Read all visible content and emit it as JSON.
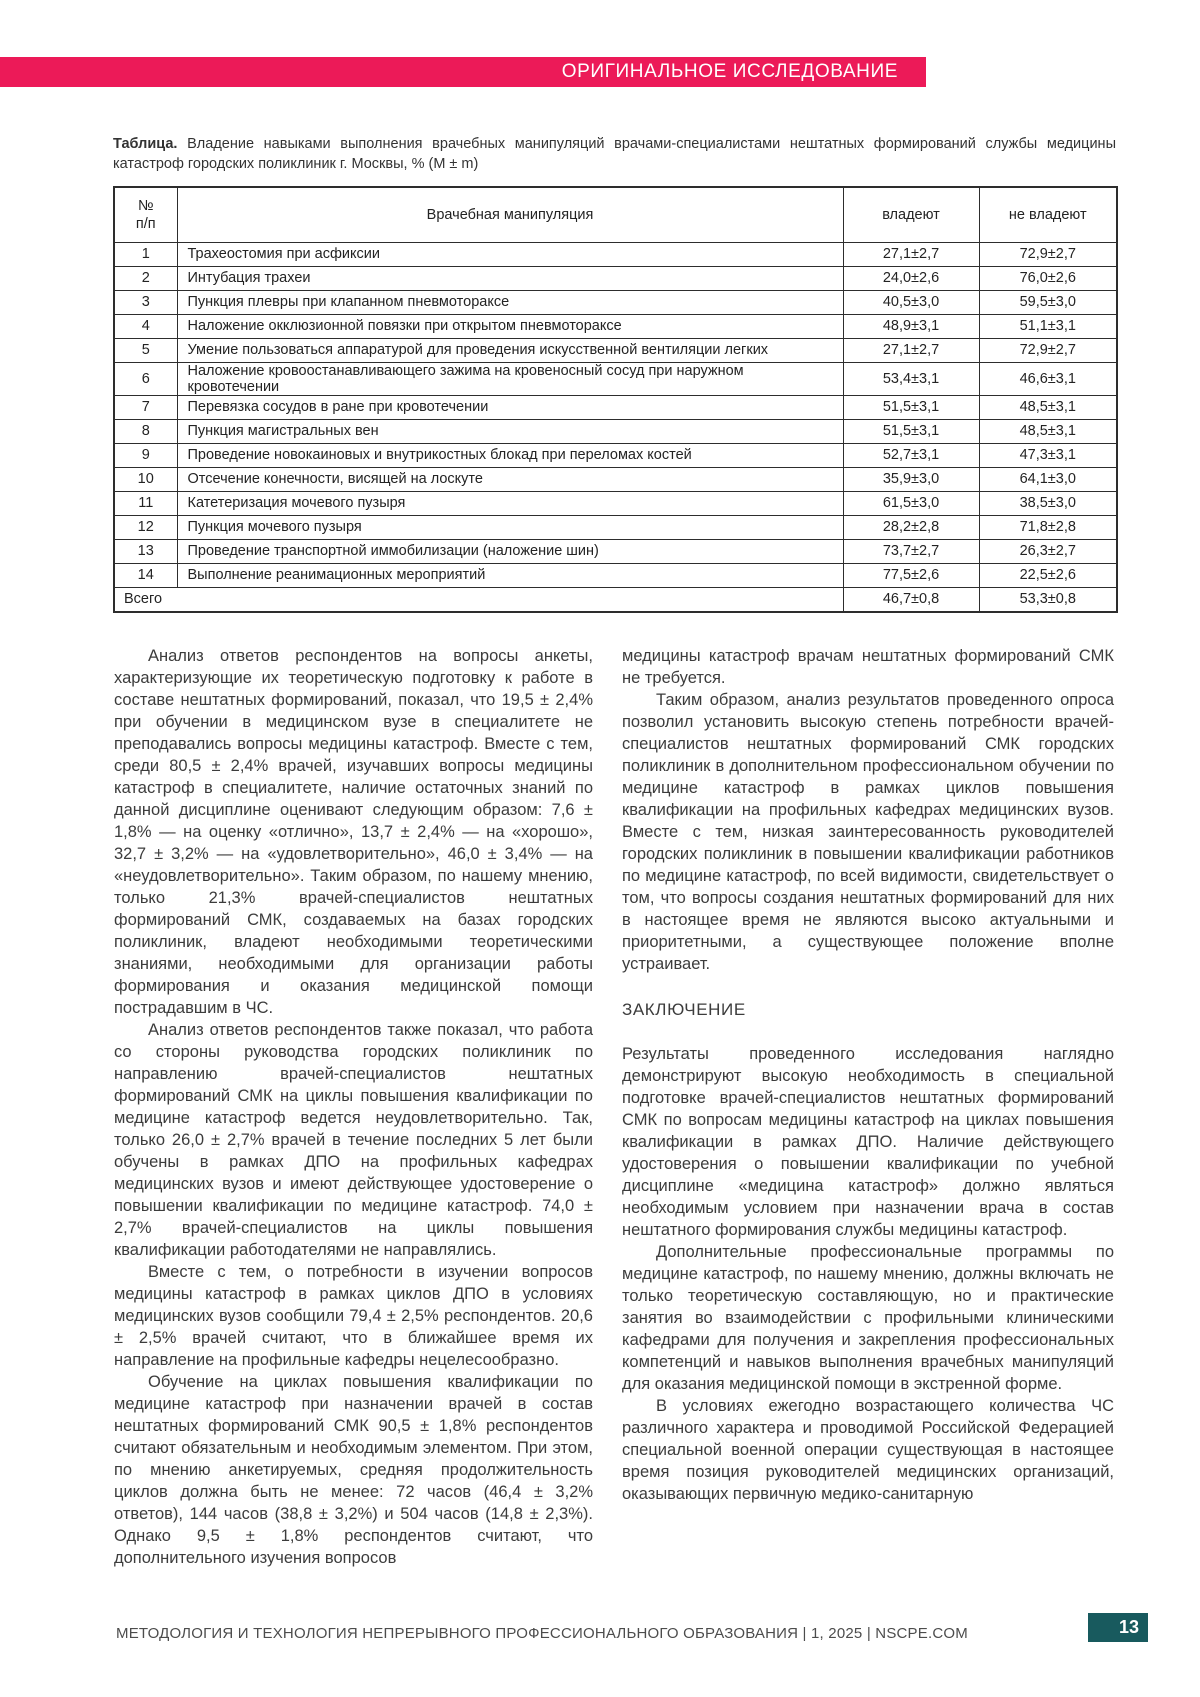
{
  "header": {
    "banner_label": "ОРИГИНАЛЬНОЕ ИССЛЕДОВАНИЕ"
  },
  "table": {
    "caption_label": "Таблица.",
    "caption_text": "Владение навыками выполнения врачебных манипуляций врачами-специалистами нештатных формирований службы медицины катастроф городских поликлиник г. Москвы, % (M ± m)",
    "columns": [
      "№\nп/п",
      "Врачебная манипуляция",
      "владеют",
      "не владеют"
    ],
    "rows": [
      {
        "num": "1",
        "name": "Трахеостомия при асфиксии",
        "own": "27,1±2,7",
        "not_own": "72,9±2,7"
      },
      {
        "num": "2",
        "name": "Интубация трахеи",
        "own": "24,0±2,6",
        "not_own": "76,0±2,6"
      },
      {
        "num": "3",
        "name": "Пункция плевры при клапанном пневмотораксе",
        "own": "40,5±3,0",
        "not_own": "59,5±3,0"
      },
      {
        "num": "4",
        "name": "Наложение окклюзионной повязки при открытом пневмотораксе",
        "own": "48,9±3,1",
        "not_own": "51,1±3,1"
      },
      {
        "num": "5",
        "name": "Умение пользоваться аппаратурой для проведения искусственной вентиляции легких",
        "own": "27,1±2,7",
        "not_own": "72,9±2,7"
      },
      {
        "num": "6",
        "name": "Наложение кровоостанавливающего зажима на кровеносный сосуд при наружном кровотечении",
        "own": "53,4±3,1",
        "not_own": "46,6±3,1"
      },
      {
        "num": "7",
        "name": "Перевязка сосудов в ране при кровотечении",
        "own": "51,5±3,1",
        "not_own": "48,5±3,1"
      },
      {
        "num": "8",
        "name": "Пункция магистральных вен",
        "own": "51,5±3,1",
        "not_own": "48,5±3,1"
      },
      {
        "num": "9",
        "name": "Проведение новокаиновых и внутрикостных блокад при переломах костей",
        "own": "52,7±3,1",
        "not_own": "47,3±3,1"
      },
      {
        "num": "10",
        "name": "Отсечение конечности, висящей на лоскуте",
        "own": "35,9±3,0",
        "not_own": "64,1±3,0"
      },
      {
        "num": "11",
        "name": "Катетеризация мочевого пузыря",
        "own": "61,5±3,0",
        "not_own": "38,5±3,0"
      },
      {
        "num": "12",
        "name": "Пункция мочевого пузыря",
        "own": "28,2±2,8",
        "not_own": "71,8±2,8"
      },
      {
        "num": "13",
        "name": "Проведение транспортной иммобилизации (наложение шин)",
        "own": "73,7±2,7",
        "not_own": "26,3±2,7"
      },
      {
        "num": "14",
        "name": "Выполнение реанимационных мероприятий",
        "own": "77,5±2,6",
        "not_own": "22,5±2,6"
      }
    ],
    "total": {
      "label": "Всего",
      "own": "46,7±0,8",
      "not_own": "53,3±0,8"
    }
  },
  "article": {
    "left_column": [
      {
        "type": "paragraph",
        "indent": true,
        "text": "Анализ ответов респондентов на вопросы анкеты, характеризующие их теоретическую подготовку к работе в составе нештатных формирований, показал, что 19,5 ± 2,4% при обучении в медицинском вузе в специалитете не преподавались вопросы медицины катастроф. Вместе с тем, среди 80,5 ± 2,4% врачей, изучавших вопросы медицины катастроф в специалитете, наличие остаточных знаний по данной дисциплине оценивают следующим образом: 7,6 ± 1,8% — на оценку «отлично», 13,7 ± 2,4% — на «хорошо», 32,7 ± 3,2% — на «удовлетворительно», 46,0 ± 3,4% — на «неудовлетворительно». Таким образом, по нашему мнению, только 21,3% врачей-специалистов нештатных формирований СМК, создаваемых на базах городских поликлиник, владеют необходимыми теоретическими знаниями, необходимыми для организации работы формирования и оказания медицинской помощи пострадавшим в ЧС."
      },
      {
        "type": "paragraph",
        "indent": true,
        "text": "Анализ ответов респондентов также показал, что работа со стороны руководства городских поликлиник по направлению врачей-специалистов нештатных формирований СМК на циклы повышения квалификации по медицине катастроф ведется неудовлетворительно. Так, только 26,0 ± 2,7% врачей в течение последних 5 лет были обучены в рамках ДПО на профильных кафедрах медицинских вузов и имеют действующее удостоверение о повышении квалификации по медицине катастроф. 74,0 ± 2,7% врачей-специалистов на циклы повышения квалификации работодателями не направлялись."
      },
      {
        "type": "paragraph",
        "indent": true,
        "text": "Вместе с тем, о потребности в изучении вопросов медицины катастроф в рамках циклов ДПО в условиях медицинских вузов сообщили 79,4 ± 2,5% респондентов. 20,6 ± 2,5% врачей считают, что в ближайшее время их направление на профильные кафедры нецелесообразно."
      },
      {
        "type": "paragraph",
        "indent": true,
        "text": "Обучение на циклах повышения квалификации по медицине катастроф при назначении врачей в состав нештатных формирований СМК 90,5 ± 1,8% респондентов считают обязательным и необходимым элементом. При этом, по мнению анкетируемых, средняя продолжительность циклов должна быть не менее: 72 часов (46,4 ± 3,2% ответов), 144 часов (38,8 ± 3,2%) и 504 часов (14,8 ± 2,3%). Однако 9,5 ± 1,8% респондентов считают, что дополнительного изучения вопросов"
      }
    ],
    "right_column": [
      {
        "type": "paragraph",
        "indent": false,
        "text": "медицины катастроф врачам нештатных формирований СМК не требуется."
      },
      {
        "type": "paragraph",
        "indent": true,
        "text": "Таким образом, анализ результатов проведенного опроса позволил установить высокую степень потребности врачей-специалистов нештатных формирований СМК городских поликлиник в дополнительном профессиональном обучении по медицине катастроф в рамках циклов повышения квалификации на профильных кафедрах медицинских вузов. Вместе с тем, низкая заинтересованность руководителей городских поликлиник в повышении квалификации работников по медицине катастроф, по всей видимости, свидетельствует о том, что вопросы создания нештатных формирований для них в настоящее время не являются высоко актуальными и приоритетными, а существующее положение вполне устраивает."
      },
      {
        "type": "heading",
        "indent": false,
        "text": "ЗАКЛЮЧЕНИЕ"
      },
      {
        "type": "paragraph",
        "indent": false,
        "text": "Результаты проведенного исследования наглядно демонстрируют высокую необходимость в специальной подготовке врачей-специалистов нештатных формирований СМК по вопросам медицины катастроф на циклах повышения квалификации в рамках ДПО. Наличие действующего удостоверения о повышении квалификации по учебной дисциплине «медицина катастроф» должно являться необходимым условием при назначении врача в состав нештатного формирования службы медицины катастроф."
      },
      {
        "type": "paragraph",
        "indent": true,
        "text": "Дополнительные профессиональные программы по медицине катастроф, по нашему мнению, должны включать не только теоретическую составляющую, но и практические занятия во взаимодействии с профильными клиническими кафедрами для получения и закрепления профессиональных компетенций и навыков выполнения врачебных манипуляций для оказания медицинской помощи в экстренной форме."
      },
      {
        "type": "paragraph",
        "indent": true,
        "text": "В условиях ежегодно возрастающего количества ЧС различного характера и проводимой Российской Федерацией специальной военной операции существующая в настоящее время позиция руководителей медицинских организаций, оказывающих первичную медико-санитарную"
      }
    ]
  },
  "footer": {
    "journal_line": "МЕТОДОЛОГИЯ И ТЕХНОЛОГИЯ НЕПРЕРЫВНОГО ПРОФЕССИОНАЛЬНОГО ОБРАЗОВАНИЯ | 1, 2025 | NSCPE.COM",
    "page_number": "13"
  },
  "colors": {
    "accent_pink": "#ec1a58",
    "accent_teal": "#185a5e"
  }
}
